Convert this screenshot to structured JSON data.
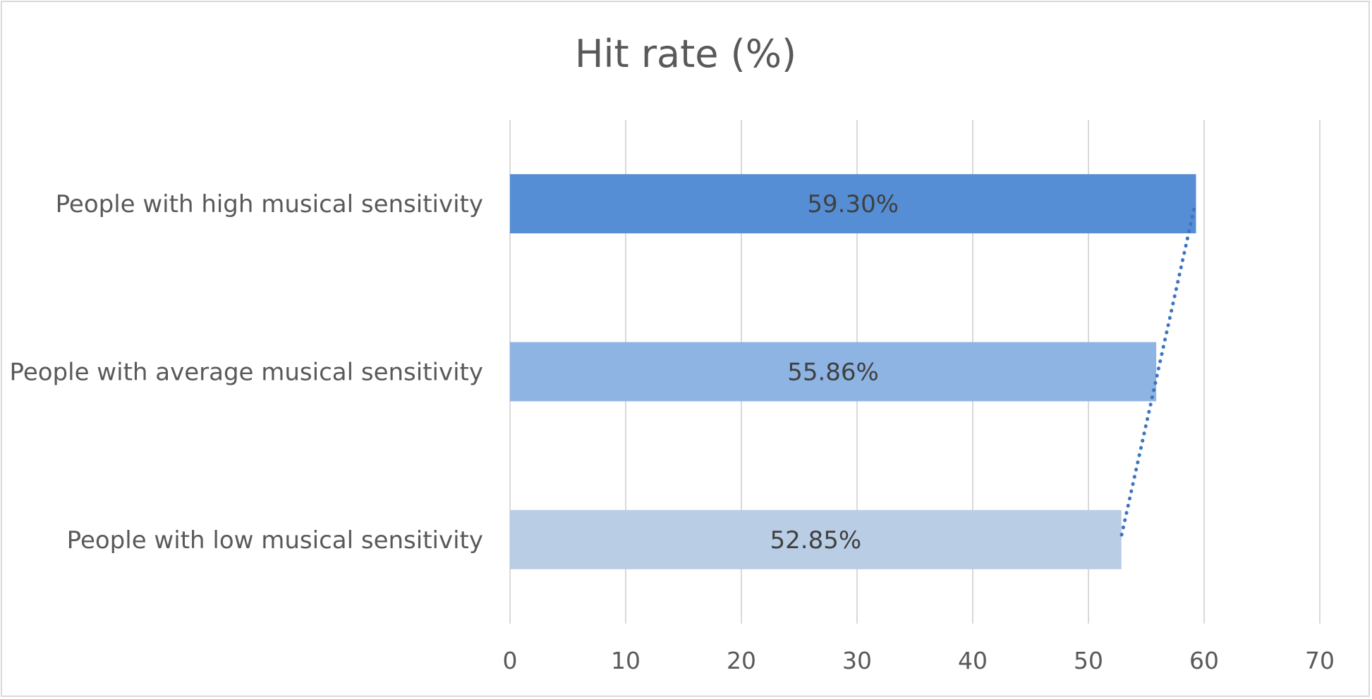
{
  "chart_data": {
    "type": "bar",
    "orientation": "horizontal",
    "title": "Hit rate (%)",
    "xlabel": "",
    "ylabel": "",
    "xlim": [
      0,
      70
    ],
    "x_ticks": [
      0,
      10,
      20,
      30,
      40,
      50,
      60,
      70
    ],
    "grid": true,
    "legend": "none",
    "categories": [
      "People with high musical sensitivity",
      "People with average musical sensitivity",
      "People with low musical sensitivity"
    ],
    "values": [
      59.3,
      55.86,
      52.85
    ],
    "data_labels": [
      "59.30%",
      "55.86%",
      "52.85%"
    ],
    "bar_colors": [
      "#558ed5",
      "#8eb4e3",
      "#b9cde5"
    ],
    "trendline": {
      "style": "dotted",
      "color": "#3d75bf",
      "type": "linear"
    }
  },
  "colors": {
    "gridline": "#d9d9d9",
    "text": "#595959",
    "data_label_text": "#404040",
    "border": "#d9d9d9"
  }
}
